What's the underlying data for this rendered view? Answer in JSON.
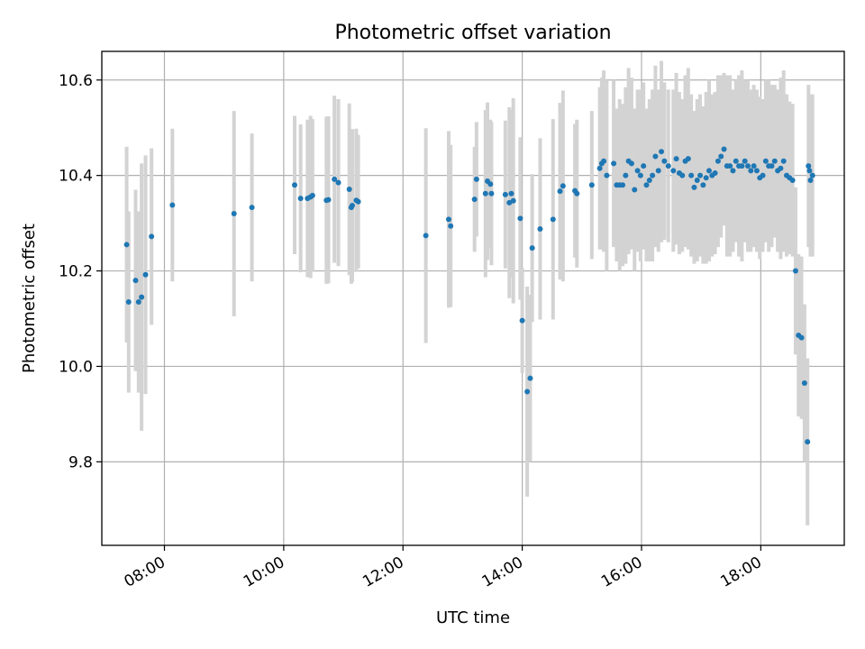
{
  "chart_data": {
    "type": "scatter",
    "title": "Photometric offset variation",
    "xlabel": "UTC time",
    "ylabel": "Photometric offset",
    "x_ticks": [
      "08:00",
      "10:00",
      "12:00",
      "14:00",
      "16:00",
      "18:00"
    ],
    "x_tick_hours": [
      8,
      10,
      12,
      14,
      16,
      18
    ],
    "y_ticks": [
      9.8,
      10.0,
      10.2,
      10.4,
      10.6
    ],
    "xlim_hours": [
      6.95,
      19.4
    ],
    "ylim": [
      9.625,
      10.66
    ],
    "grid": true,
    "colors": {
      "marker": "#1f77b4",
      "errorbar": "#d3d3d3"
    },
    "series": [
      {
        "x_time": [
          "07:22",
          "07:24",
          "07:31",
          "07:34",
          "07:37",
          "07:41",
          "07:47",
          "08:08",
          "09:10",
          "09:28",
          "10:11",
          "10:17",
          "10:24",
          "10:27",
          "10:29",
          "10:43",
          "10:45",
          "10:51",
          "10:55",
          "11:06",
          "11:08",
          "11:09",
          "11:13",
          "11:15",
          "12:23",
          "12:46",
          "12:48",
          "13:12",
          "13:14",
          "13:23",
          "13:25",
          "13:28",
          "13:29",
          "13:43",
          "13:47",
          "13:49",
          "13:51",
          "13:58",
          "14:00",
          "14:05",
          "14:08",
          "14:10",
          "14:18",
          "14:31",
          "14:38",
          "14:41",
          "14:53",
          "14:55",
          "15:10",
          "15:18",
          "15:20",
          "15:22",
          "15:25",
          "15:32",
          "15:35",
          "15:38",
          "15:41",
          "15:44",
          "15:47",
          "15:50",
          "15:53",
          "15:56",
          "15:59",
          "16:02",
          "16:05",
          "16:08",
          "16:11",
          "16:14",
          "16:17",
          "16:20",
          "16:23",
          "16:27",
          "16:32",
          "16:35",
          "16:38",
          "16:41",
          "16:44",
          "16:47",
          "16:50",
          "16:53",
          "16:56",
          "16:59",
          "17:02",
          "17:05",
          "17:08",
          "17:11",
          "17:14",
          "17:17",
          "17:20",
          "17:23",
          "17:26",
          "17:29",
          "17:32",
          "17:35",
          "17:38",
          "17:41",
          "17:44",
          "17:47",
          "17:50",
          "17:53",
          "17:56",
          "17:59",
          "18:02",
          "18:05",
          "18:08",
          "18:11",
          "18:14",
          "18:17",
          "18:20",
          "18:23",
          "18:26",
          "18:29",
          "18:32",
          "18:35",
          "18:38",
          "18:41",
          "18:44",
          "18:47",
          "18:48",
          "18:49",
          "18:50",
          "18:52"
        ],
        "y": [
          10.255,
          10.135,
          10.18,
          10.135,
          10.145,
          10.192,
          10.272,
          10.338,
          10.32,
          10.333,
          10.38,
          10.352,
          10.352,
          10.355,
          10.358,
          10.348,
          10.349,
          10.392,
          10.385,
          10.371,
          10.333,
          10.337,
          10.348,
          10.345,
          10.274,
          10.308,
          10.294,
          10.35,
          10.392,
          10.362,
          10.388,
          10.382,
          10.362,
          10.36,
          10.343,
          10.362,
          10.347,
          10.31,
          10.096,
          9.947,
          9.975,
          10.248,
          10.288,
          10.308,
          10.367,
          10.378,
          10.368,
          10.362,
          10.38,
          10.415,
          10.425,
          10.43,
          10.4,
          10.425,
          10.38,
          10.38,
          10.38,
          10.4,
          10.43,
          10.425,
          10.37,
          10.41,
          10.4,
          10.42,
          10.38,
          10.39,
          10.4,
          10.44,
          10.41,
          10.45,
          10.43,
          10.42,
          10.41,
          10.435,
          10.405,
          10.4,
          10.43,
          10.435,
          10.4,
          10.375,
          10.39,
          10.4,
          10.38,
          10.395,
          10.41,
          10.4,
          10.405,
          10.43,
          10.44,
          10.455,
          10.42,
          10.42,
          10.41,
          10.43,
          10.42,
          10.42,
          10.43,
          10.42,
          10.41,
          10.42,
          10.41,
          10.395,
          10.4,
          10.43,
          10.42,
          10.42,
          10.43,
          10.41,
          10.415,
          10.43,
          10.4,
          10.395,
          10.39,
          10.2,
          10.065,
          10.06,
          9.965,
          9.842,
          10.42,
          10.41,
          10.39,
          10.4
        ],
        "yerr": [
          0.205,
          0.19,
          0.19,
          0.19,
          0.28,
          0.25,
          0.185,
          0.16,
          0.215,
          0.155,
          0.145,
          0.155,
          0.165,
          0.17,
          0.16,
          0.175,
          0.175,
          0.175,
          0.175,
          0.18,
          0.16,
          0.16,
          0.15,
          0.14,
          0.225,
          0.185,
          0.17,
          0.11,
          0.12,
          0.175,
          0.165,
          0.135,
          0.15,
          0.155,
          0.2,
          0.175,
          0.215,
          0.17,
          0.11,
          0.22,
          0.175,
          0.155,
          0.19,
          0.21,
          0.185,
          0.2,
          0.14,
          0.155,
          0.155,
          0.17,
          0.18,
          0.19,
          0.2,
          0.175,
          0.16,
          0.18,
          0.17,
          0.185,
          0.195,
          0.18,
          0.17,
          0.17,
          0.18,
          0.175,
          0.16,
          0.17,
          0.18,
          0.19,
          0.17,
          0.19,
          0.165,
          0.16,
          0.17,
          0.18,
          0.17,
          0.16,
          0.18,
          0.19,
          0.17,
          0.16,
          0.17,
          0.17,
          0.165,
          0.18,
          0.19,
          0.17,
          0.17,
          0.18,
          0.17,
          0.16,
          0.19,
          0.19,
          0.17,
          0.17,
          0.19,
          0.2,
          0.17,
          0.18,
          0.17,
          0.17,
          0.17,
          0.17,
          0.16,
          0.17,
          0.18,
          0.17,
          0.16,
          0.17,
          0.19,
          0.19,
          0.17,
          0.16,
          0.16,
          0.175,
          0.17,
          0.17,
          0.165,
          0.175,
          0.17,
          0.16,
          0.16,
          0.17
        ]
      }
    ]
  }
}
